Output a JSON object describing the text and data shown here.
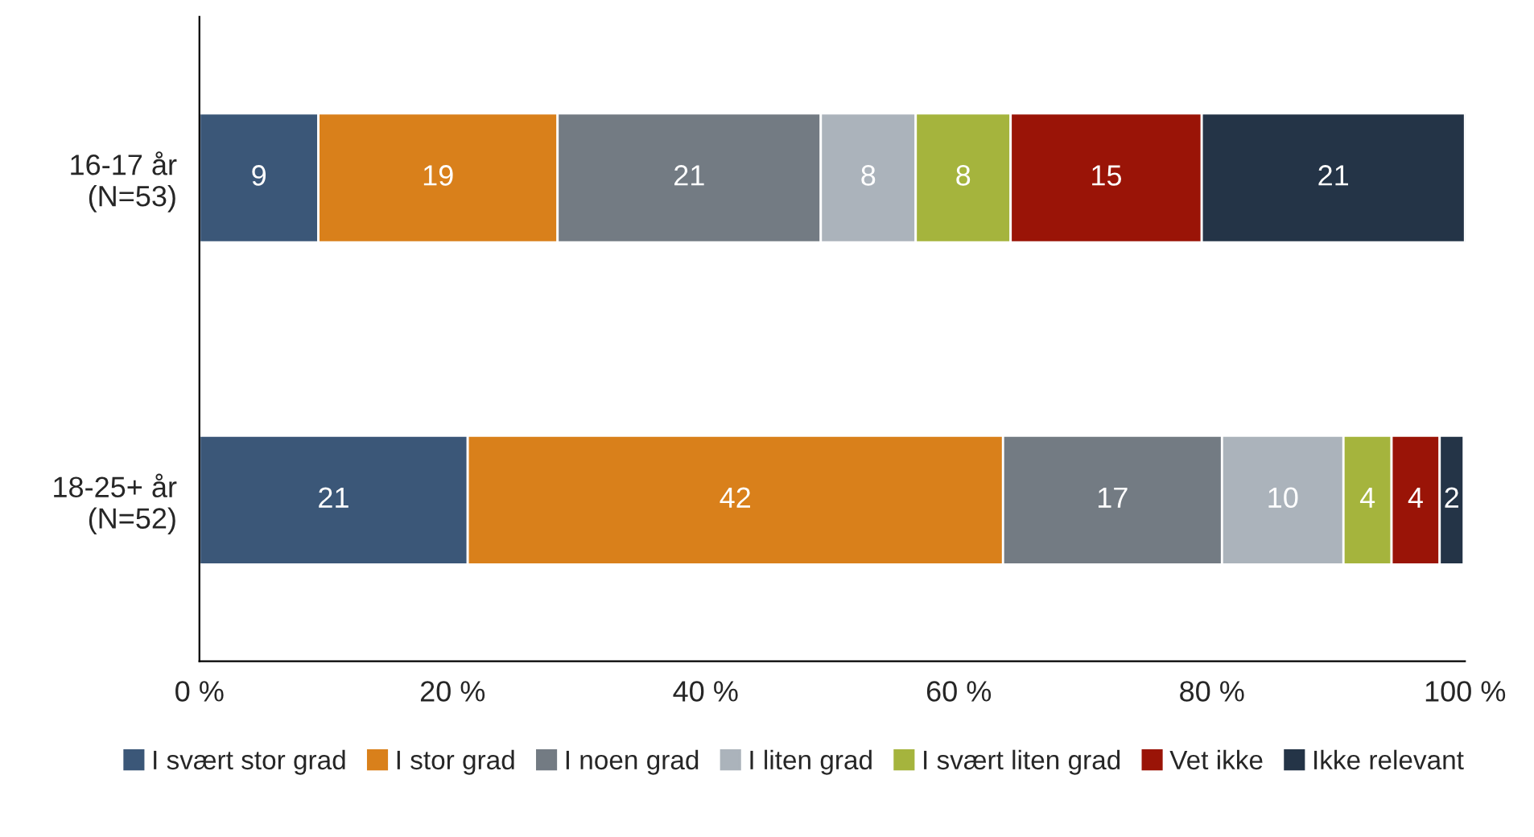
{
  "chart_data": {
    "type": "bar",
    "orientation": "horizontal",
    "stacked": true,
    "categories": [
      "16-17 år\n(N=53)",
      "18-25+ år\n(N=52)"
    ],
    "series": [
      {
        "name": "I svært stor grad",
        "color": "#3b5778",
        "values": [
          9.4,
          21.2
        ],
        "value_labels": [
          "9",
          "21"
        ]
      },
      {
        "name": "I stor grad",
        "color": "#d9801b",
        "values": [
          18.9,
          42.3
        ],
        "value_labels": [
          "19",
          "42"
        ]
      },
      {
        "name": "I noen grad",
        "color": "#737b83",
        "values": [
          20.8,
          17.3
        ],
        "value_labels": [
          "21",
          "17"
        ]
      },
      {
        "name": "I liten grad",
        "color": "#abb3bb",
        "values": [
          7.5,
          9.6
        ],
        "value_labels": [
          "8",
          "10"
        ]
      },
      {
        "name": "I svært liten grad",
        "color": "#a5b43d",
        "values": [
          7.5,
          3.8
        ],
        "value_labels": [
          "8",
          "4"
        ]
      },
      {
        "name": "Vet ikke",
        "color": "#9a1407",
        "values": [
          15.1,
          3.8
        ],
        "value_labels": [
          "15",
          "4"
        ]
      },
      {
        "name": "Ikke relevant",
        "color": "#243447",
        "values": [
          20.8,
          1.9
        ],
        "value_labels": [
          "21",
          "2"
        ]
      }
    ],
    "xlim": [
      0,
      100
    ],
    "xticks": [
      {
        "value": 0,
        "label": "0 %"
      },
      {
        "value": 20,
        "label": "20 %"
      },
      {
        "value": 40,
        "label": "40 %"
      },
      {
        "value": 60,
        "label": "60 %"
      },
      {
        "value": 80,
        "label": "80 %"
      },
      {
        "value": 100,
        "label": "100 %"
      }
    ],
    "grid": false,
    "legend": "bottom"
  }
}
